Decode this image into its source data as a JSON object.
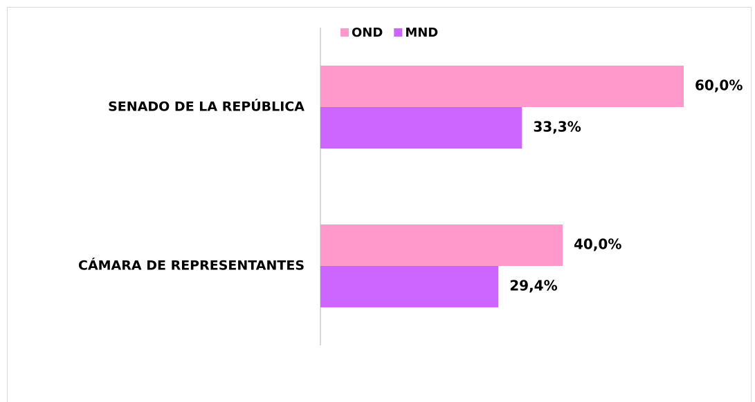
{
  "chart_data": {
    "type": "hbar",
    "categories": [
      "SENADO DE LA REPÚBLICA",
      "CÁMARA DE REPRESENTANTES"
    ],
    "series": [
      {
        "name": "OND",
        "color": "#ff99cc",
        "values": [
          60,
          40
        ],
        "value_labels": [
          "60,0%",
          "40,0%"
        ]
      },
      {
        "name": "MND",
        "color": "#cc66ff",
        "values": [
          33.3,
          29.4
        ],
        "value_labels": [
          "33,3%",
          "29,4%"
        ]
      }
    ],
    "xlim": [
      0,
      70
    ],
    "legend": "top"
  }
}
